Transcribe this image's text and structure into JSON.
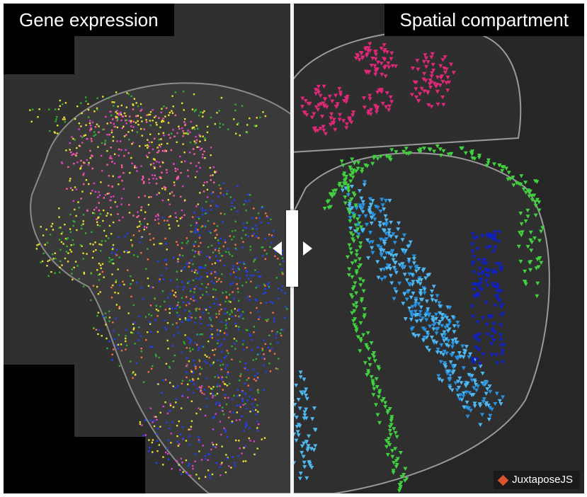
{
  "labels": {
    "left": "Gene expression",
    "right": "Spatial compartment"
  },
  "credit": {
    "text": "JuxtaposeJS",
    "logo_color": "#d9542c"
  },
  "slider": {
    "position_percent": 50
  },
  "colors": {
    "gene_magenta": "#e040c8",
    "gene_pink": "#ff5fa0",
    "gene_yellow": "#e8e030",
    "gene_green": "#30b030",
    "gene_blue": "#2040ff",
    "gene_orange": "#ff7040",
    "compartment_magenta": "#e02878",
    "compartment_green": "#40d040",
    "compartment_lightblue": "#50b8f0",
    "compartment_midblue": "#2890e0",
    "compartment_darkblue": "#1020c0"
  }
}
